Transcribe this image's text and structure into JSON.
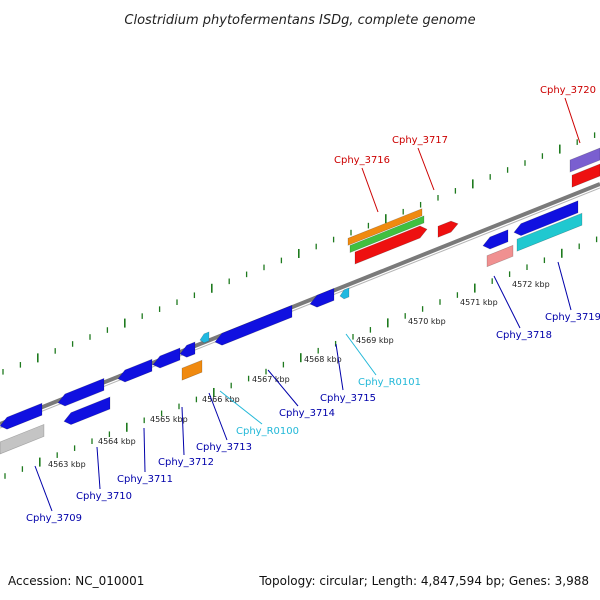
{
  "title": "Clostridium phytofermentans ISDg, complete genome",
  "footer": {
    "accession": "Accession: NC_010001",
    "summary": "Topology: circular; Length: 4,847,594 bp; Genes: 3,988"
  },
  "colors": {
    "backbone": "#7a7a7a",
    "tick": "#1e7a1e",
    "label_forward": "#cc0000",
    "label_reverse": "#0000aa",
    "label_rna": "#22b8d8"
  },
  "axis": {
    "labels": [
      "4563 kbp",
      "4564 kbp",
      "4565 kbp",
      "4566 kbp",
      "4567 kbp",
      "4568 kbp",
      "4569 kbp",
      "4570 kbp",
      "4571 kbp",
      "4572 kbp"
    ]
  },
  "gene_labels": [
    {
      "text": "Cphy_3709",
      "kind": "reverse"
    },
    {
      "text": "Cphy_3710",
      "kind": "reverse"
    },
    {
      "text": "Cphy_3711",
      "kind": "reverse"
    },
    {
      "text": "Cphy_3712",
      "kind": "reverse"
    },
    {
      "text": "Cphy_3713",
      "kind": "reverse"
    },
    {
      "text": "Cphy_R0100",
      "kind": "rna"
    },
    {
      "text": "Cphy_3714",
      "kind": "reverse"
    },
    {
      "text": "Cphy_3715",
      "kind": "reverse"
    },
    {
      "text": "Cphy_R0101",
      "kind": "rna"
    },
    {
      "text": "Cphy_3716",
      "kind": "forward"
    },
    {
      "text": "Cphy_3717",
      "kind": "forward"
    },
    {
      "text": "Cphy_3718",
      "kind": "reverse"
    },
    {
      "text": "Cphy_3719",
      "kind": "reverse"
    },
    {
      "text": "Cphy_3720",
      "kind": "forward"
    }
  ]
}
